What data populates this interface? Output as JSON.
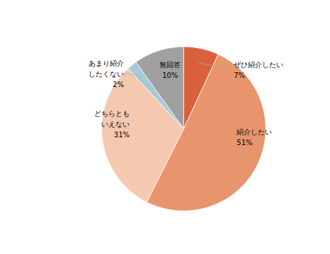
{
  "chart_data": {
    "type": "pie",
    "categories": [
      "ぜひ紹介したい",
      "紹介したい",
      "どちらとも\nいえない",
      "あまり紹介\nしたくない",
      "無回答"
    ],
    "values": [
      7,
      51,
      31,
      2,
      10
    ],
    "value_labels": [
      "7%",
      "51%",
      "31%",
      "2%",
      "10%"
    ],
    "colors": [
      "#d9603b",
      "#e8956d",
      "#f5c9b0",
      "#a8c8d8",
      "#a0a0a0"
    ],
    "data_labels": true
  }
}
